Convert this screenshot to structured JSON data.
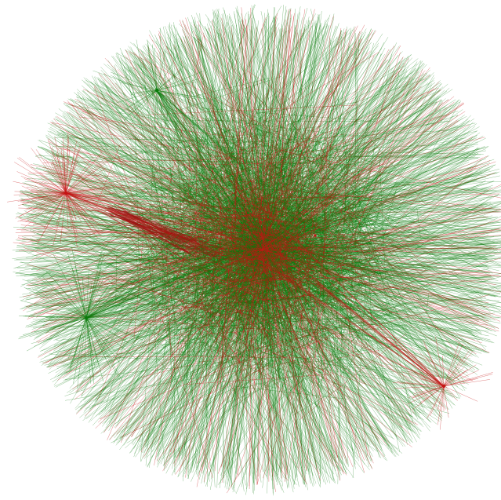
{
  "graph": {
    "background": "#ffffff",
    "edge_colors": {
      "positive": "#0a7a0a",
      "negative": "#c41414"
    },
    "hubs": [
      {
        "id": "central-hub",
        "edge_color": "negative"
      },
      {
        "id": "red-cluster-left",
        "edge_color": "negative"
      },
      {
        "id": "green-cluster-left",
        "edge_color": "positive"
      },
      {
        "id": "green-cluster-top-left",
        "edge_color": "positive"
      },
      {
        "id": "red-cluster-bottom-right",
        "edge_color": "negative"
      },
      {
        "id": "red-hub-right",
        "edge_color": "negative"
      }
    ]
  }
}
